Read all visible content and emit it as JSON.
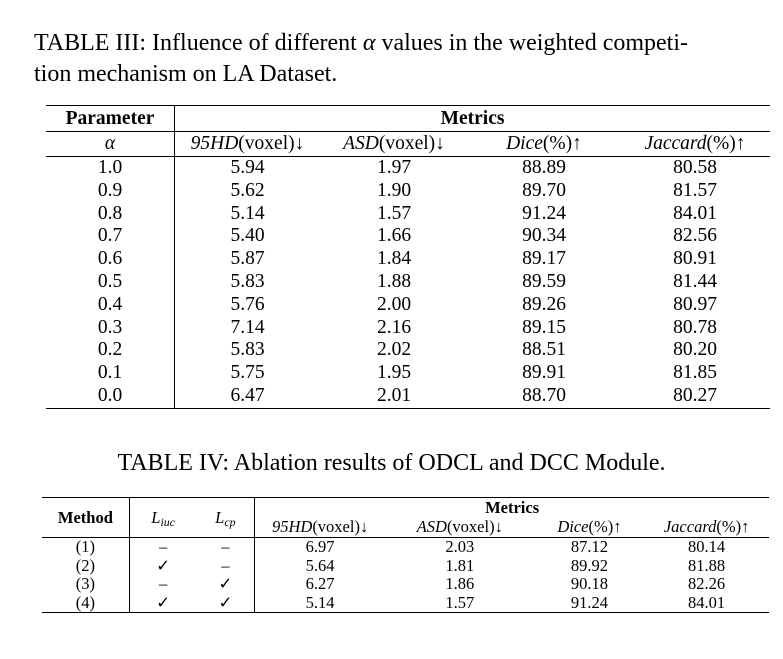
{
  "table3": {
    "caption": "TABLE III: Influence of different α values in the weighted competition mechanism on LA Dataset.",
    "caption_line1": "TABLE III: Influence of different ",
    "caption_alpha": "α",
    "caption_line1_end": " values in the weighted competi-",
    "caption_line2": "tion mechanism on LA Dataset.",
    "header_parameter": "Parameter",
    "header_metrics": "Metrics",
    "param_symbol": "α",
    "columns": [
      {
        "italic": "95HD",
        "rest": "(voxel)↓"
      },
      {
        "italic": "ASD",
        "rest": "(voxel)↓"
      },
      {
        "italic": "Dice",
        "rest": "(%)↑"
      },
      {
        "italic": "Jaccard",
        "rest": "(%)↑"
      }
    ],
    "rows": [
      {
        "alpha": "1.0",
        "hd95": "5.94",
        "asd": "1.97",
        "dice": "88.89",
        "jaccard": "80.58"
      },
      {
        "alpha": "0.9",
        "hd95": "5.62",
        "asd": "1.90",
        "dice": "89.70",
        "jaccard": "81.57"
      },
      {
        "alpha": "0.8",
        "hd95": "5.14",
        "asd": "1.57",
        "dice": "91.24",
        "jaccard": "84.01"
      },
      {
        "alpha": "0.7",
        "hd95": "5.40",
        "asd": "1.66",
        "dice": "90.34",
        "jaccard": "82.56"
      },
      {
        "alpha": "0.6",
        "hd95": "5.87",
        "asd": "1.84",
        "dice": "89.17",
        "jaccard": "80.91"
      },
      {
        "alpha": "0.5",
        "hd95": "5.83",
        "asd": "1.88",
        "dice": "89.59",
        "jaccard": "81.44"
      },
      {
        "alpha": "0.4",
        "hd95": "5.76",
        "asd": "2.00",
        "dice": "89.26",
        "jaccard": "80.97"
      },
      {
        "alpha": "0.3",
        "hd95": "7.14",
        "asd": "2.16",
        "dice": "89.15",
        "jaccard": "80.78"
      },
      {
        "alpha": "0.2",
        "hd95": "5.83",
        "asd": "2.02",
        "dice": "88.51",
        "jaccard": "80.20"
      },
      {
        "alpha": "0.1",
        "hd95": "5.75",
        "asd": "1.95",
        "dice": "89.91",
        "jaccard": "81.85"
      },
      {
        "alpha": "0.0",
        "hd95": "6.47",
        "asd": "2.01",
        "dice": "88.70",
        "jaccard": "80.27"
      }
    ]
  },
  "table4": {
    "caption": "TABLE IV: Ablation results of ODCL and DCC Module.",
    "header_method": "Method",
    "l_iuc": {
      "main": "L",
      "sub": "iuc"
    },
    "l_cp": {
      "main": "L",
      "sub": "cp"
    },
    "header_metrics": "Metrics",
    "columns": [
      {
        "italic": "95HD",
        "rest": "(voxel)↓"
      },
      {
        "italic": "ASD",
        "rest": "(voxel)↓"
      },
      {
        "italic": "Dice",
        "rest": "(%)↑"
      },
      {
        "italic": "Jaccard",
        "rest": "(%)↑"
      }
    ],
    "rows": [
      {
        "method": "(1)",
        "liuc": "–",
        "lcp": "–",
        "hd95": "6.97",
        "asd": "2.03",
        "dice": "87.12",
        "jaccard": "80.14"
      },
      {
        "method": "(2)",
        "liuc": "✓",
        "lcp": "–",
        "hd95": "5.64",
        "asd": "1.81",
        "dice": "89.92",
        "jaccard": "81.88"
      },
      {
        "method": "(3)",
        "liuc": "–",
        "lcp": "✓",
        "hd95": "6.27",
        "asd": "1.86",
        "dice": "90.18",
        "jaccard": "82.26"
      },
      {
        "method": "(4)",
        "liuc": "✓",
        "lcp": "✓",
        "hd95": "5.14",
        "asd": "1.57",
        "dice": "91.24",
        "jaccard": "84.01"
      }
    ]
  }
}
